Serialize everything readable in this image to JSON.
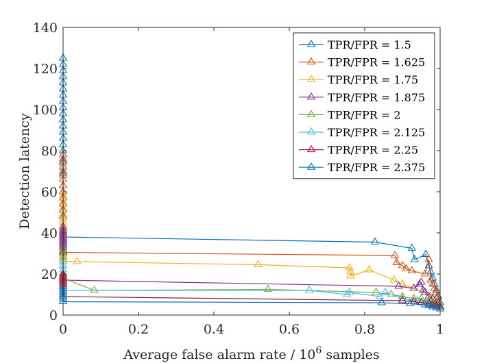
{
  "chart_data": {
    "type": "line",
    "title": "",
    "xlabel": "Average false alarm rate / 10",
    "xlabel_exponent": "6",
    "xlabel_suffix": " samples",
    "ylabel": "Detection latency",
    "xlim": [
      0,
      1
    ],
    "ylim": [
      0,
      140
    ],
    "xticks": [
      0,
      0.2,
      0.4,
      0.6,
      0.8,
      1
    ],
    "xtick_labels": [
      "0",
      "0.2",
      "0.4",
      "0.6",
      "0.8",
      "1"
    ],
    "yticks": [
      0,
      20,
      40,
      60,
      80,
      100,
      120,
      140
    ],
    "ytick_labels": [
      "0",
      "20",
      "40",
      "60",
      "80",
      "100",
      "120",
      "140"
    ],
    "grid": false,
    "legend_position": "top-right",
    "marker": "triangle",
    "series": [
      {
        "name": "TPR/FPR = 1.5",
        "color": "#0072BD",
        "x": [
          0,
          0,
          0,
          0,
          0,
          0,
          0,
          0,
          0,
          0,
          0,
          0,
          0,
          0,
          0,
          0,
          0,
          0,
          0,
          0,
          0,
          0,
          0,
          0,
          0,
          0,
          0,
          0,
          0,
          0.827,
          0.925,
          0.932,
          0.962,
          0.97,
          0.975,
          0.98,
          0.985,
          0.99,
          0.995,
          1.0
        ],
        "y": [
          125,
          122,
          119,
          116,
          113,
          110,
          107,
          104,
          101,
          98,
          95,
          92,
          89,
          86,
          83,
          80,
          78,
          75,
          72,
          69,
          66,
          63,
          60,
          57,
          54,
          51,
          48,
          45,
          38,
          35.5,
          32.5,
          27,
          29.5,
          24,
          21,
          18,
          15,
          12,
          9,
          6
        ]
      },
      {
        "name": "TPR/FPR = 1.625",
        "color": "#D95319",
        "x": [
          0,
          0,
          0,
          0,
          0,
          0,
          0,
          0,
          0,
          0,
          0,
          0,
          0,
          0,
          0,
          0,
          0,
          0,
          0,
          0.88,
          0.885,
          0.9,
          0.91,
          0.925,
          0.96,
          0.97,
          0.975,
          0.98,
          0.985,
          0.99,
          0.993,
          0.996,
          1.0
        ],
        "y": [
          78,
          76,
          74,
          72,
          70,
          68,
          66,
          63,
          60,
          57,
          54,
          51,
          48,
          45,
          42,
          39,
          36,
          33,
          30.5,
          29,
          25.5,
          24,
          22.5,
          21.5,
          20,
          27,
          17,
          15,
          13,
          11,
          9,
          7,
          4
        ]
      },
      {
        "name": "TPR/FPR = 1.75",
        "color": "#EDB120",
        "x": [
          0,
          0,
          0,
          0,
          0,
          0,
          0,
          0,
          0,
          0,
          0,
          0,
          0,
          0,
          0,
          0,
          0,
          0,
          0.037,
          0.517,
          0.76,
          0.762,
          0.763,
          0.812,
          0.878,
          0.9,
          0.93,
          0.96,
          0.975,
          0.985,
          0.99,
          0.995,
          1.0
        ],
        "y": [
          58,
          55,
          52,
          49,
          47,
          45,
          43,
          41,
          39,
          37,
          35,
          33,
          31,
          30,
          29,
          28,
          27,
          26,
          26,
          24.5,
          23,
          21,
          19,
          22,
          17,
          15,
          13,
          11,
          9,
          7,
          6,
          5,
          4
        ]
      },
      {
        "name": "TPR/FPR = 1.875",
        "color": "#7E2F8E",
        "x": [
          0,
          0,
          0,
          0,
          0,
          0,
          0,
          0,
          0,
          0,
          0,
          0,
          0,
          0,
          0.89,
          0.93,
          0.945,
          0.95,
          0.955,
          0.96,
          0.97,
          0.98,
          0.99,
          1.0
        ],
        "y": [
          43,
          41,
          40,
          39,
          38,
          37,
          36,
          35,
          34,
          33,
          32,
          31,
          30,
          17,
          14,
          13,
          15,
          16,
          12,
          11,
          9,
          8,
          6,
          4
        ]
      },
      {
        "name": "TPR/FPR = 2",
        "color": "#77AC30",
        "x": [
          0,
          0,
          0,
          0,
          0,
          0,
          0,
          0,
          0.083,
          0.543,
          0.83,
          0.87,
          0.9,
          0.93,
          0.95,
          0.97,
          0.98,
          0.99,
          1.0
        ],
        "y": [
          32,
          30,
          28,
          26,
          24,
          22,
          20,
          18,
          12,
          12.5,
          11,
          10,
          9,
          8,
          8,
          7,
          6,
          5,
          4
        ]
      },
      {
        "name": "TPR/FPR = 2.125",
        "color": "#4DBEEE",
        "x": [
          0,
          0,
          0,
          0,
          0,
          0,
          0,
          0,
          0.653,
          0.753,
          0.76,
          0.84,
          0.855,
          0.9,
          0.94,
          0.96,
          0.98,
          1.0
        ],
        "y": [
          26,
          24,
          22,
          20,
          18,
          16,
          14,
          12,
          12,
          10,
          11,
          9,
          11,
          8,
          7,
          6,
          5,
          4
        ]
      },
      {
        "name": "TPR/FPR = 2.25",
        "color": "#A2142F",
        "x": [
          0,
          0,
          0,
          0,
          0,
          0,
          0,
          0,
          0.9,
          0.93,
          0.95,
          0.97,
          0.98,
          0.99,
          1.0
        ],
        "y": [
          20,
          19,
          18,
          17,
          16,
          15,
          14,
          9,
          7,
          6.5,
          6,
          5.5,
          5,
          4.5,
          4
        ]
      },
      {
        "name": "TPR/FPR = 2.375",
        "color": "#0072BD",
        "x": [
          0,
          0,
          0,
          0,
          0,
          0,
          0,
          0.845,
          0.92,
          0.96,
          0.97,
          0.98,
          0.99,
          1.0
        ],
        "y": [
          13,
          12,
          11,
          10,
          9,
          8,
          6.5,
          6,
          5.5,
          5,
          4.5,
          4,
          3.5,
          3
        ]
      }
    ]
  }
}
